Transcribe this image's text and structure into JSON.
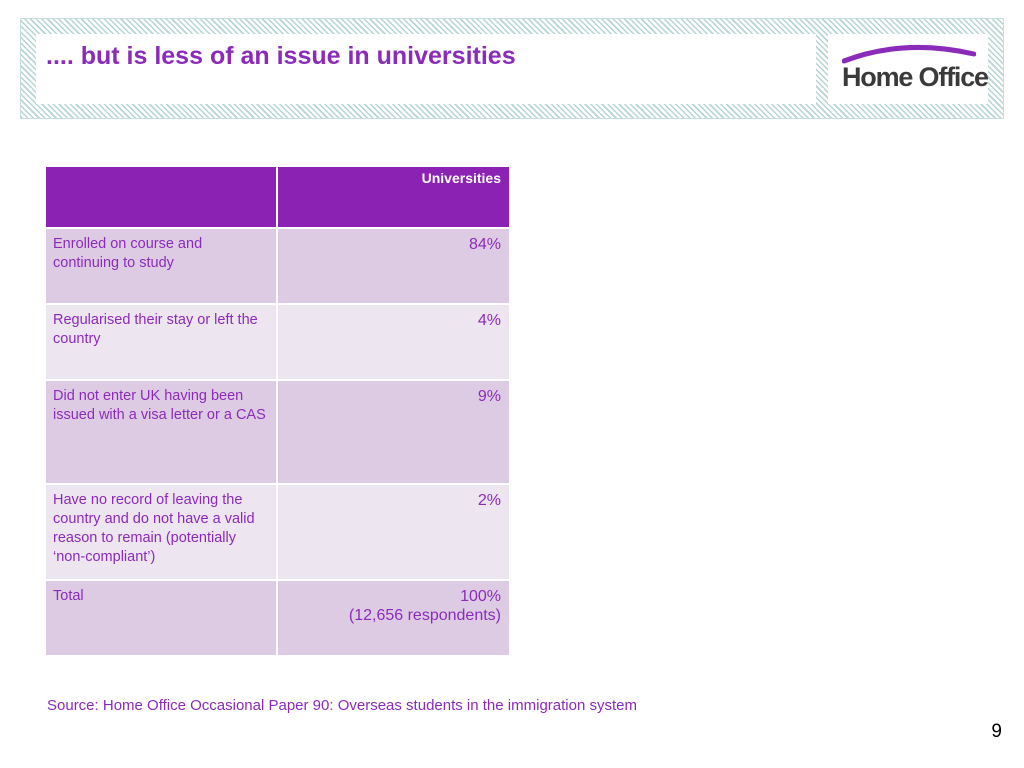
{
  "header": {
    "title": ".... but is less of an issue in universities",
    "logo_text": "Home Office",
    "accent_color": "#8b2bb9"
  },
  "table": {
    "corner_header": "",
    "column_header": "Universities",
    "rows": [
      {
        "label": "Enrolled on course and continuing to study",
        "value": "84%"
      },
      {
        "label": "Regularised their stay or left the country",
        "value": "4%"
      },
      {
        "label": "Did not enter UK having been issued with a visa letter or a CAS",
        "value": "9%"
      },
      {
        "label": "Have no record of leaving the country and do not have a valid reason to remain (potentially ‘non-compliant’)",
        "value": "2%"
      },
      {
        "label": "Total",
        "value": "100%",
        "subvalue": "(12,656 respondents)"
      }
    ]
  },
  "source": "Source: Home Office Occasional Paper 90: Overseas students in the immigration system",
  "page_number": "9"
}
